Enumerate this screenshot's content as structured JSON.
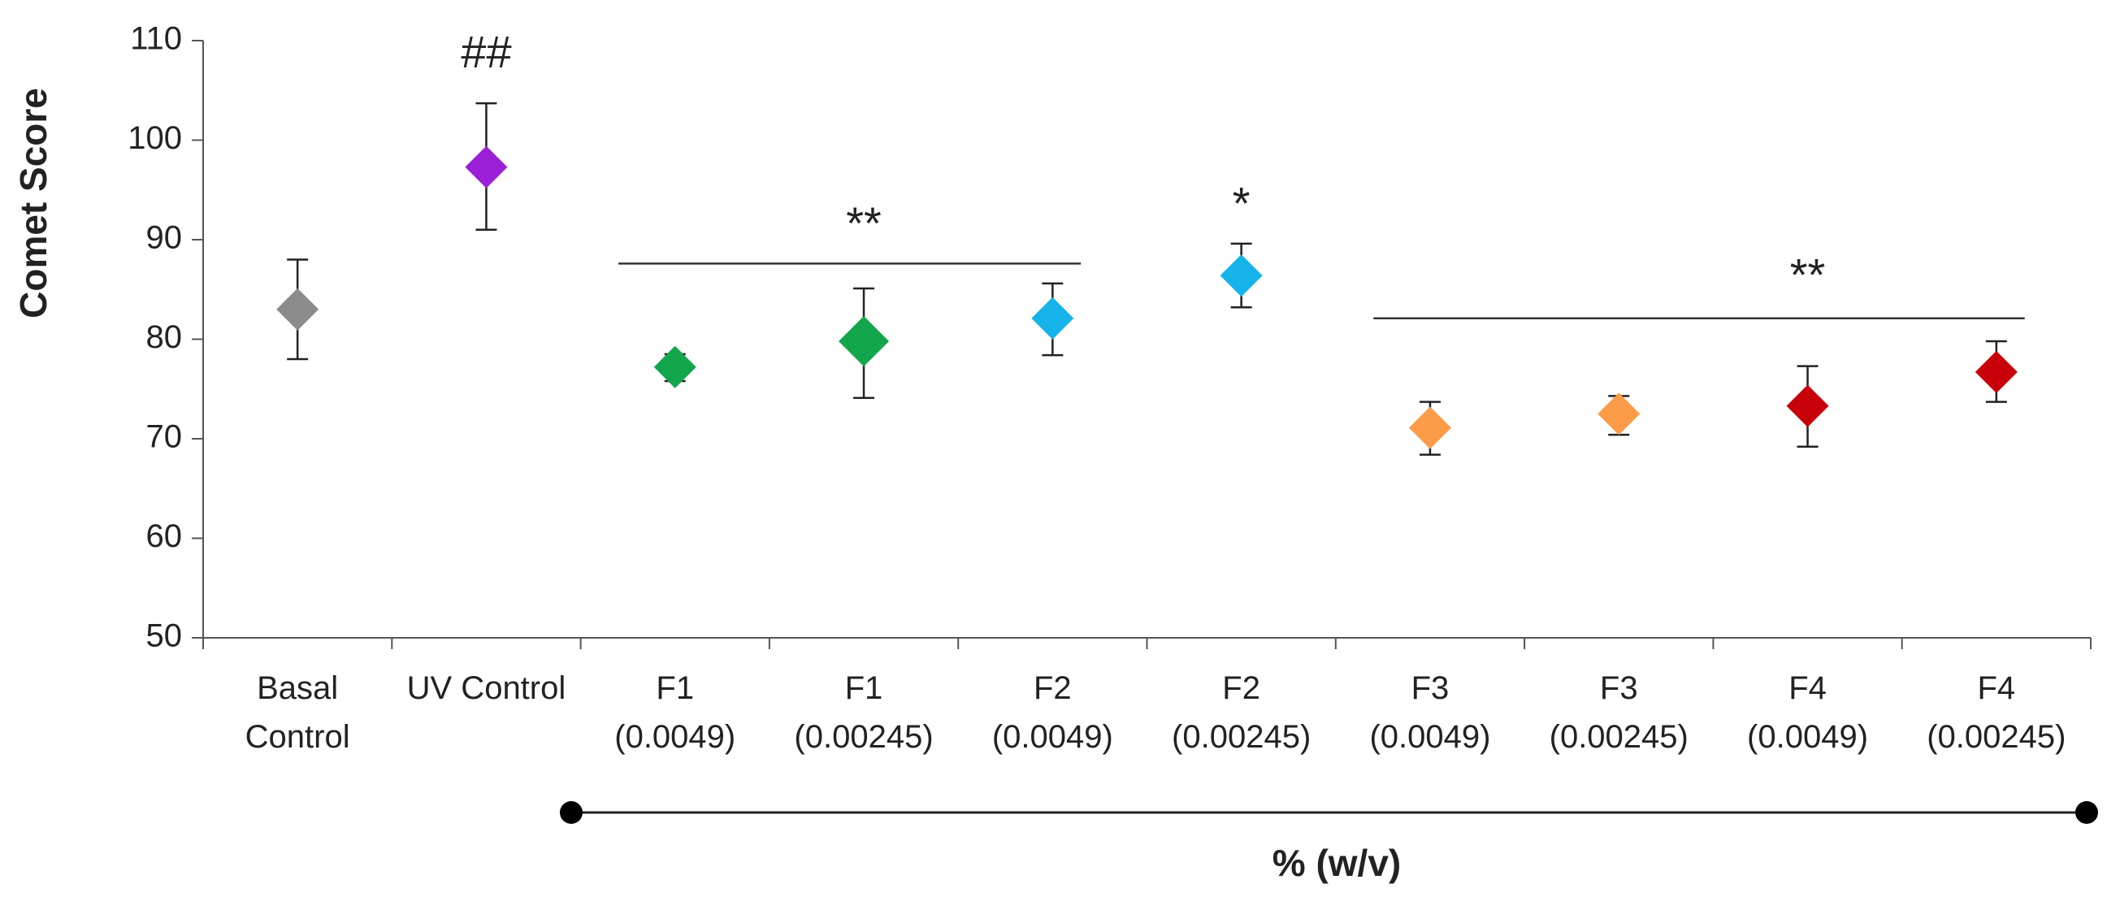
{
  "chart_data": {
    "type": "scatter",
    "title": "",
    "ylabel": "Comet Score",
    "xlabel": "% (w/v)",
    "ylim": [
      50,
      110
    ],
    "yticks": [
      50,
      60,
      70,
      80,
      90,
      100,
      110
    ],
    "grid": false,
    "categories": [
      {
        "line1": "Basal",
        "line2": "Control",
        "value": 83,
        "err_high": 88,
        "err_low": 78,
        "color": "#8c8c8c",
        "size": "medium"
      },
      {
        "line1": "UV Control",
        "line2": "",
        "value": 97.3,
        "err_high": 103.7,
        "err_low": 91,
        "color": "#9b1fd6",
        "size": "medium"
      },
      {
        "line1": "F1",
        "line2": "(0.0049)",
        "value": 77.2,
        "err_high": 78.5,
        "err_low": 75.8,
        "color": "#13a54b",
        "size": "medium"
      },
      {
        "line1": "F1",
        "line2": "(0.00245)",
        "value": 79.8,
        "err_high": 85.1,
        "err_low": 74.1,
        "color": "#13a54b",
        "size": "large"
      },
      {
        "line1": "F2",
        "line2": "(0.0049)",
        "value": 82.1,
        "err_high": 85.6,
        "err_low": 78.4,
        "color": "#16b3ea",
        "size": "medium"
      },
      {
        "line1": "F2",
        "line2": "(0.00245)",
        "value": 86.4,
        "err_high": 89.6,
        "err_low": 83.2,
        "color": "#16b3ea",
        "size": "medium"
      },
      {
        "line1": "F3",
        "line2": "(0.0049)",
        "value": 71.1,
        "err_high": 73.7,
        "err_low": 68.4,
        "color": "#fc9b48",
        "size": "medium"
      },
      {
        "line1": "F3",
        "line2": "(0.00245)",
        "value": 72.5,
        "err_high": 74.3,
        "err_low": 70.4,
        "color": "#fc9b48",
        "size": "medium"
      },
      {
        "line1": "F4",
        "line2": "(0.0049)",
        "value": 73.3,
        "err_high": 77.3,
        "err_low": 69.2,
        "color": "#c8000a",
        "size": "medium"
      },
      {
        "line1": "F4",
        "line2": "(0.00245)",
        "value": 76.7,
        "err_high": 79.8,
        "err_low": 73.7,
        "color": "#c8000a",
        "size": "medium"
      }
    ],
    "annotations": [
      {
        "text": "##",
        "category_index": 1,
        "y": 108.5
      },
      {
        "text": "**",
        "category_index": 3,
        "y": 91.3
      },
      {
        "text": "*",
        "category_index": 5,
        "y": 93.3
      },
      {
        "text": "**",
        "category_index": 8,
        "y": 86.1
      }
    ],
    "brackets": [
      {
        "from": 2,
        "to": 4,
        "y": 87.6
      },
      {
        "from": 6,
        "to": 9,
        "y": 82.1
      }
    ],
    "concentration_range": {
      "from": 2,
      "to": 9
    }
  }
}
